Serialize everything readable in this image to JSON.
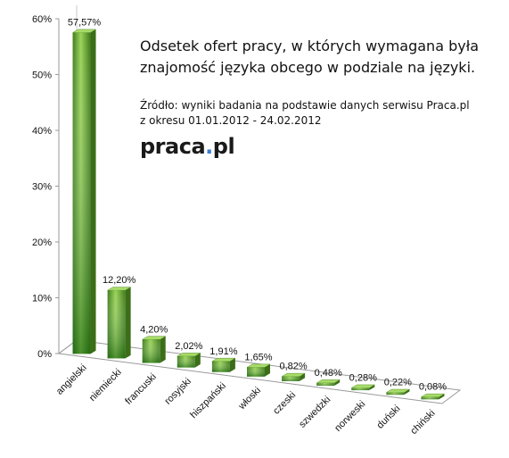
{
  "title_line1": "Odsetek ofert pracy, w których wymagana była",
  "title_line2": "znajomość języka obcego w podziale na języki.",
  "source_line1": "Źródło: wyniki badania na podstawie danych serwisu Praca.pl",
  "source_line2": "z okresu 01.01.2012 - 24.02.2012",
  "logo_main": "praca",
  "logo_dot": ".",
  "logo_tail": "pl",
  "chart_data": {
    "type": "bar",
    "categories": [
      "angielski",
      "niemiecki",
      "francuski",
      "rosyjski",
      "hiszpański",
      "włoski",
      "czeski",
      "szwedzki",
      "norweski",
      "duński",
      "chiński"
    ],
    "values": [
      57.57,
      12.2,
      4.2,
      2.02,
      1.91,
      1.65,
      0.82,
      0.48,
      0.28,
      0.22,
      0.08
    ],
    "value_labels": [
      "57,57%",
      "12,20%",
      "4,20%",
      "2,02%",
      "1,91%",
      "1,65%",
      "0,82%",
      "0,48%",
      "0,28%",
      "0,22%",
      "0,08%"
    ],
    "yticks": [
      "0%",
      "10%",
      "20%",
      "30%",
      "40%",
      "50%",
      "60%"
    ],
    "ylim": [
      0,
      60
    ],
    "bar_color": "#5a9a2a",
    "grid": false,
    "legend": "none"
  }
}
